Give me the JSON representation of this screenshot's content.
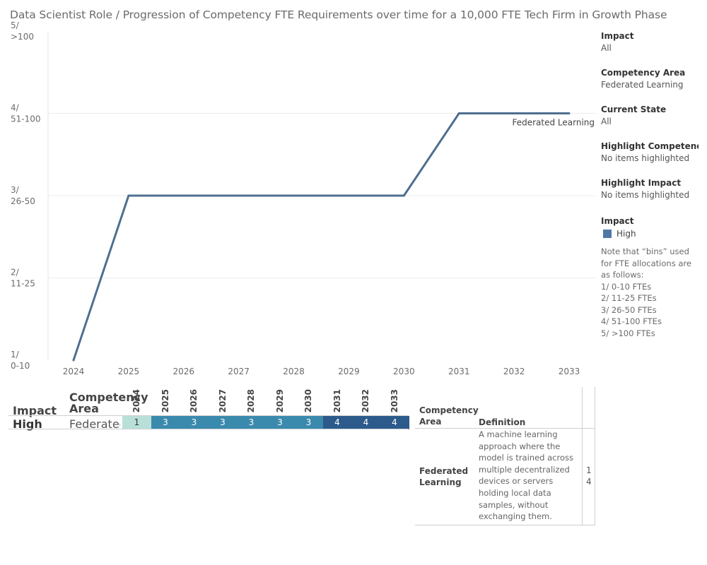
{
  "title": "Data Scientist Role / Progression of Competency FTE Requirements over time for a 10,000 FTE Tech Firm in Growth Phase",
  "chart_data": {
    "type": "line",
    "title": "Data Scientist Role / Progression of Competency FTE Requirements over time for a 10,000 FTE Tech Firm in Growth Phase",
    "categories": [
      "2024",
      "2025",
      "2026",
      "2027",
      "2028",
      "2029",
      "2030",
      "2031",
      "2032",
      "2033"
    ],
    "series": [
      {
        "name": "Federated Learning",
        "impact": "High",
        "values": [
          1,
          3,
          3,
          3,
          3,
          3,
          3,
          4,
          4,
          4
        ]
      }
    ],
    "ylim": [
      1,
      5
    ],
    "yticks": [
      {
        "value": 1,
        "line1": "1/",
        "line2": "0-10"
      },
      {
        "value": 2,
        "line1": "2/",
        "line2": "11-25"
      },
      {
        "value": 3,
        "line1": "3/",
        "line2": "26-50"
      },
      {
        "value": 4,
        "line1": "4/",
        "line2": "51-100"
      },
      {
        "value": 5,
        "line1": "5/",
        "line2": ">100"
      }
    ],
    "line_label": "Federated Learning",
    "grid": true
  },
  "filters": [
    {
      "title": "Impact",
      "value": "All"
    },
    {
      "title": "Competency Area",
      "value": "Federated Learning"
    },
    {
      "title": "Current State",
      "value": "All"
    },
    {
      "title": "Highlight Competency ..",
      "value": "No items highlighted"
    },
    {
      "title": "Highlight Impact",
      "value": "No items highlighted"
    }
  ],
  "legend": {
    "title": "Impact",
    "items": [
      {
        "label": "High",
        "color": "#4e79a7"
      }
    ]
  },
  "note": {
    "intro": "Note that “bins” used for FTE allocations are as follows:",
    "lines": [
      "1/ 0-10 FTEs",
      "2/ 11-25 FTEs",
      "3/ 26-50 FTEs",
      "4/ 51-100 FTEs",
      "5/ >100 FTEs"
    ]
  },
  "heat_table": {
    "col_impact": "Impact",
    "col_competency": "Competency Area",
    "years": [
      "2024",
      "2025",
      "2026",
      "2027",
      "2028",
      "2029",
      "2030",
      "2031",
      "2032",
      "2033"
    ],
    "row": {
      "impact": "High",
      "competency": "Federated L..",
      "values": [
        "1",
        "3",
        "3",
        "3",
        "3",
        "3",
        "3",
        "4",
        "4",
        "4"
      ]
    },
    "colors": {
      "1": "#b8e0d8",
      "3": "#3a8aad",
      "4": "#2c5a8a"
    }
  },
  "definition_table": {
    "col_competency": "Competency Area",
    "col_definition": "Definition",
    "row": {
      "competency": "Federated Learning",
      "definition": "A machine learning approach where the model is trained across multiple decentralized devices or servers holding local data samples, without exchanging them.",
      "extra": [
        "1",
        "4"
      ]
    }
  }
}
